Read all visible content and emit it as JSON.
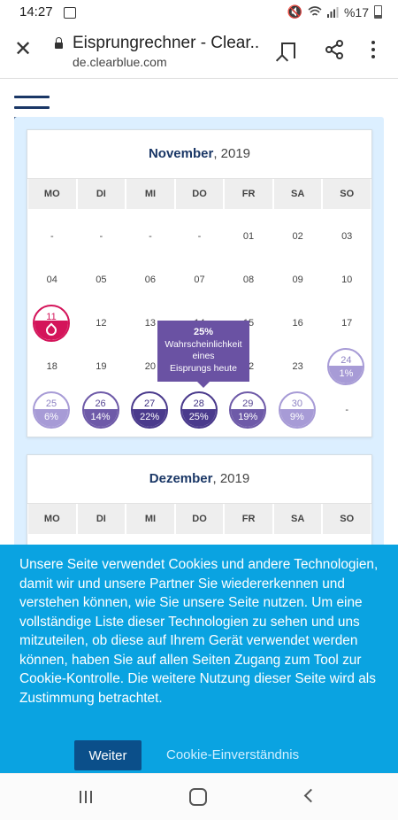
{
  "status": {
    "time": "14:27",
    "battery": "%17"
  },
  "browser": {
    "title": "Eisprungrechner - Clear...",
    "url": "de.clearblue.com"
  },
  "calendar": {
    "weekdays": [
      "MO",
      "DI",
      "MI",
      "DO",
      "FR",
      "SA",
      "SO"
    ],
    "november": {
      "month": "November",
      "year": ", 2019",
      "days": [
        {
          "n": "-"
        },
        {
          "n": "-"
        },
        {
          "n": "-"
        },
        {
          "n": "-"
        },
        {
          "n": "01"
        },
        {
          "n": "02"
        },
        {
          "n": "03"
        },
        {
          "n": "04"
        },
        {
          "n": "05"
        },
        {
          "n": "06"
        },
        {
          "n": "07"
        },
        {
          "n": "08"
        },
        {
          "n": "09"
        },
        {
          "n": "10"
        },
        {
          "n": "11",
          "type": "period"
        },
        {
          "n": "12"
        },
        {
          "n": "13"
        },
        {
          "n": "14"
        },
        {
          "n": "15"
        },
        {
          "n": "16"
        },
        {
          "n": "17"
        },
        {
          "n": "18"
        },
        {
          "n": "19"
        },
        {
          "n": "20"
        },
        {
          "n": "21"
        },
        {
          "n": "22"
        },
        {
          "n": "23"
        },
        {
          "n": "24",
          "p": "1%",
          "lvl": "light"
        },
        {
          "n": "25",
          "p": "6%",
          "lvl": "light"
        },
        {
          "n": "26",
          "p": "14%",
          "lvl": "mid"
        },
        {
          "n": "27",
          "p": "22%",
          "lvl": "dark"
        },
        {
          "n": "28",
          "p": "25%",
          "lvl": "dark"
        },
        {
          "n": "29",
          "p": "19%",
          "lvl": "mid"
        },
        {
          "n": "30",
          "p": "9%",
          "lvl": "light"
        },
        {
          "n": "-"
        }
      ]
    },
    "december": {
      "month": "Dezember",
      "year": ", 2019"
    }
  },
  "tooltip": {
    "percent": "25%",
    "line1": "Wahrscheinlichkeit",
    "line2": "eines",
    "line3": "Eisprungs heute"
  },
  "cookie": {
    "text": "Unsere Seite verwendet Cookies und andere Technologien, damit wir und unsere Partner Sie wiedererkennen und verstehen können, wie Sie unsere Seite nutzen. Um eine vollständige Liste dieser Technologien zu sehen und uns mitzuteilen, ob diese auf Ihrem Gerät verwendet werden können, haben Sie auf allen Seiten Zugang zum Tool zur Cookie-Kontrolle. Die weitere Nutzung dieser Seite wird als Zustimmung betrachtet.",
    "button": "Weiter",
    "link": "Cookie-Einverständnis"
  }
}
